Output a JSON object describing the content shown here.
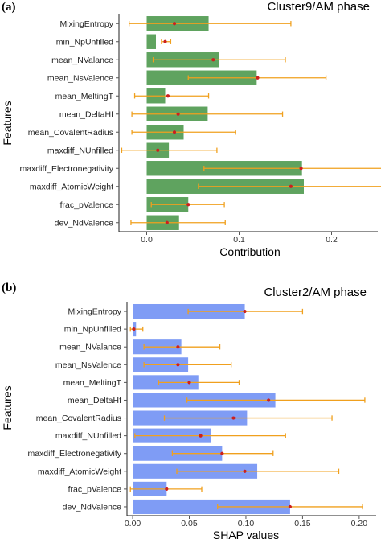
{
  "panels": [
    {
      "letter": "(a)",
      "title": "Cluster9/AM phase"
    },
    {
      "letter": "(b)",
      "title": "Cluster2/AM phase"
    }
  ],
  "colors": {
    "bar_a": "#5fa35f",
    "bar_b": "#7f9cf5",
    "errorbar": "#f0a01e",
    "point": "#cc1f1f",
    "axis": "#222222",
    "tick": "#555555"
  },
  "chart_data": [
    {
      "type": "bar",
      "orientation": "horizontal",
      "title": "Cluster9/AM phase",
      "xlabel": "Contribution",
      "ylabel": "Features",
      "xlim": [
        -0.03,
        0.25
      ],
      "xticks": [
        0.0,
        0.1,
        0.2
      ],
      "xtick_labels": [
        "0.0",
        "0.1",
        "0.2"
      ],
      "grid": false,
      "categories": [
        "MixingEntropy",
        "min_NpUnfilled",
        "mean_NValance",
        "mean_NsValence",
        "mean_MeltingT",
        "mean_DeltaHf",
        "mean_CovalentRadius",
        "maxdiff_NUnfilled",
        "maxdiff_Electronegativity",
        "maxdiff_AtomicWeight",
        "frac_pValence",
        "dev_NdValence"
      ],
      "values": [
        0.067,
        0.01,
        0.078,
        0.119,
        0.02,
        0.066,
        0.04,
        0.024,
        0.168,
        0.17,
        0.045,
        0.035
      ],
      "points": [
        0.03,
        0.02,
        0.072,
        0.12,
        0.023,
        0.034,
        0.03,
        0.012,
        0.167,
        0.156,
        0.045,
        0.022
      ],
      "error_low": [
        -0.019,
        0.016,
        0.007,
        0.045,
        -0.013,
        -0.016,
        -0.016,
        -0.027,
        0.062,
        0.056,
        0.005,
        -0.017
      ],
      "error_high": [
        0.156,
        0.026,
        0.15,
        0.194,
        0.067,
        0.147,
        0.096,
        0.076,
        0.275,
        0.287,
        0.084,
        0.085
      ]
    },
    {
      "type": "bar",
      "orientation": "horizontal",
      "title": "Cluster2/AM phase",
      "xlabel": "SHAP values",
      "ylabel": "Features",
      "xlim": [
        -0.005,
        0.215
      ],
      "xticks": [
        0.0,
        0.05,
        0.1,
        0.15,
        0.2
      ],
      "xtick_labels": [
        "0.00",
        "0.05",
        "0.10",
        "0.15",
        "0.20"
      ],
      "grid": false,
      "categories": [
        "MixingEntropy",
        "min_NpUnfilled",
        "mean_NValance",
        "mean_NsValence",
        "mean_MeltingT",
        "mean_DeltaHf",
        "mean_CovalentRadius",
        "maxdiff_NUnfilled",
        "maxdiff_Electronegativity",
        "maxdiff_AtomicWeight",
        "frac_pValence",
        "dev_NdValence"
      ],
      "values": [
        0.099,
        0.003,
        0.043,
        0.049,
        0.058,
        0.126,
        0.101,
        0.069,
        0.079,
        0.11,
        0.03,
        0.139
      ],
      "points": [
        0.099,
        0.001,
        0.04,
        0.04,
        0.05,
        0.12,
        0.089,
        0.06,
        0.079,
        0.099,
        0.03,
        0.139
      ],
      "error_low": [
        0.049,
        -0.002,
        0.01,
        0.01,
        0.023,
        0.048,
        0.028,
        0.002,
        0.035,
        0.039,
        -0.002,
        0.075
      ],
      "error_high": [
        0.15,
        0.009,
        0.077,
        0.087,
        0.094,
        0.205,
        0.176,
        0.135,
        0.124,
        0.182,
        0.061,
        0.203
      ]
    }
  ]
}
